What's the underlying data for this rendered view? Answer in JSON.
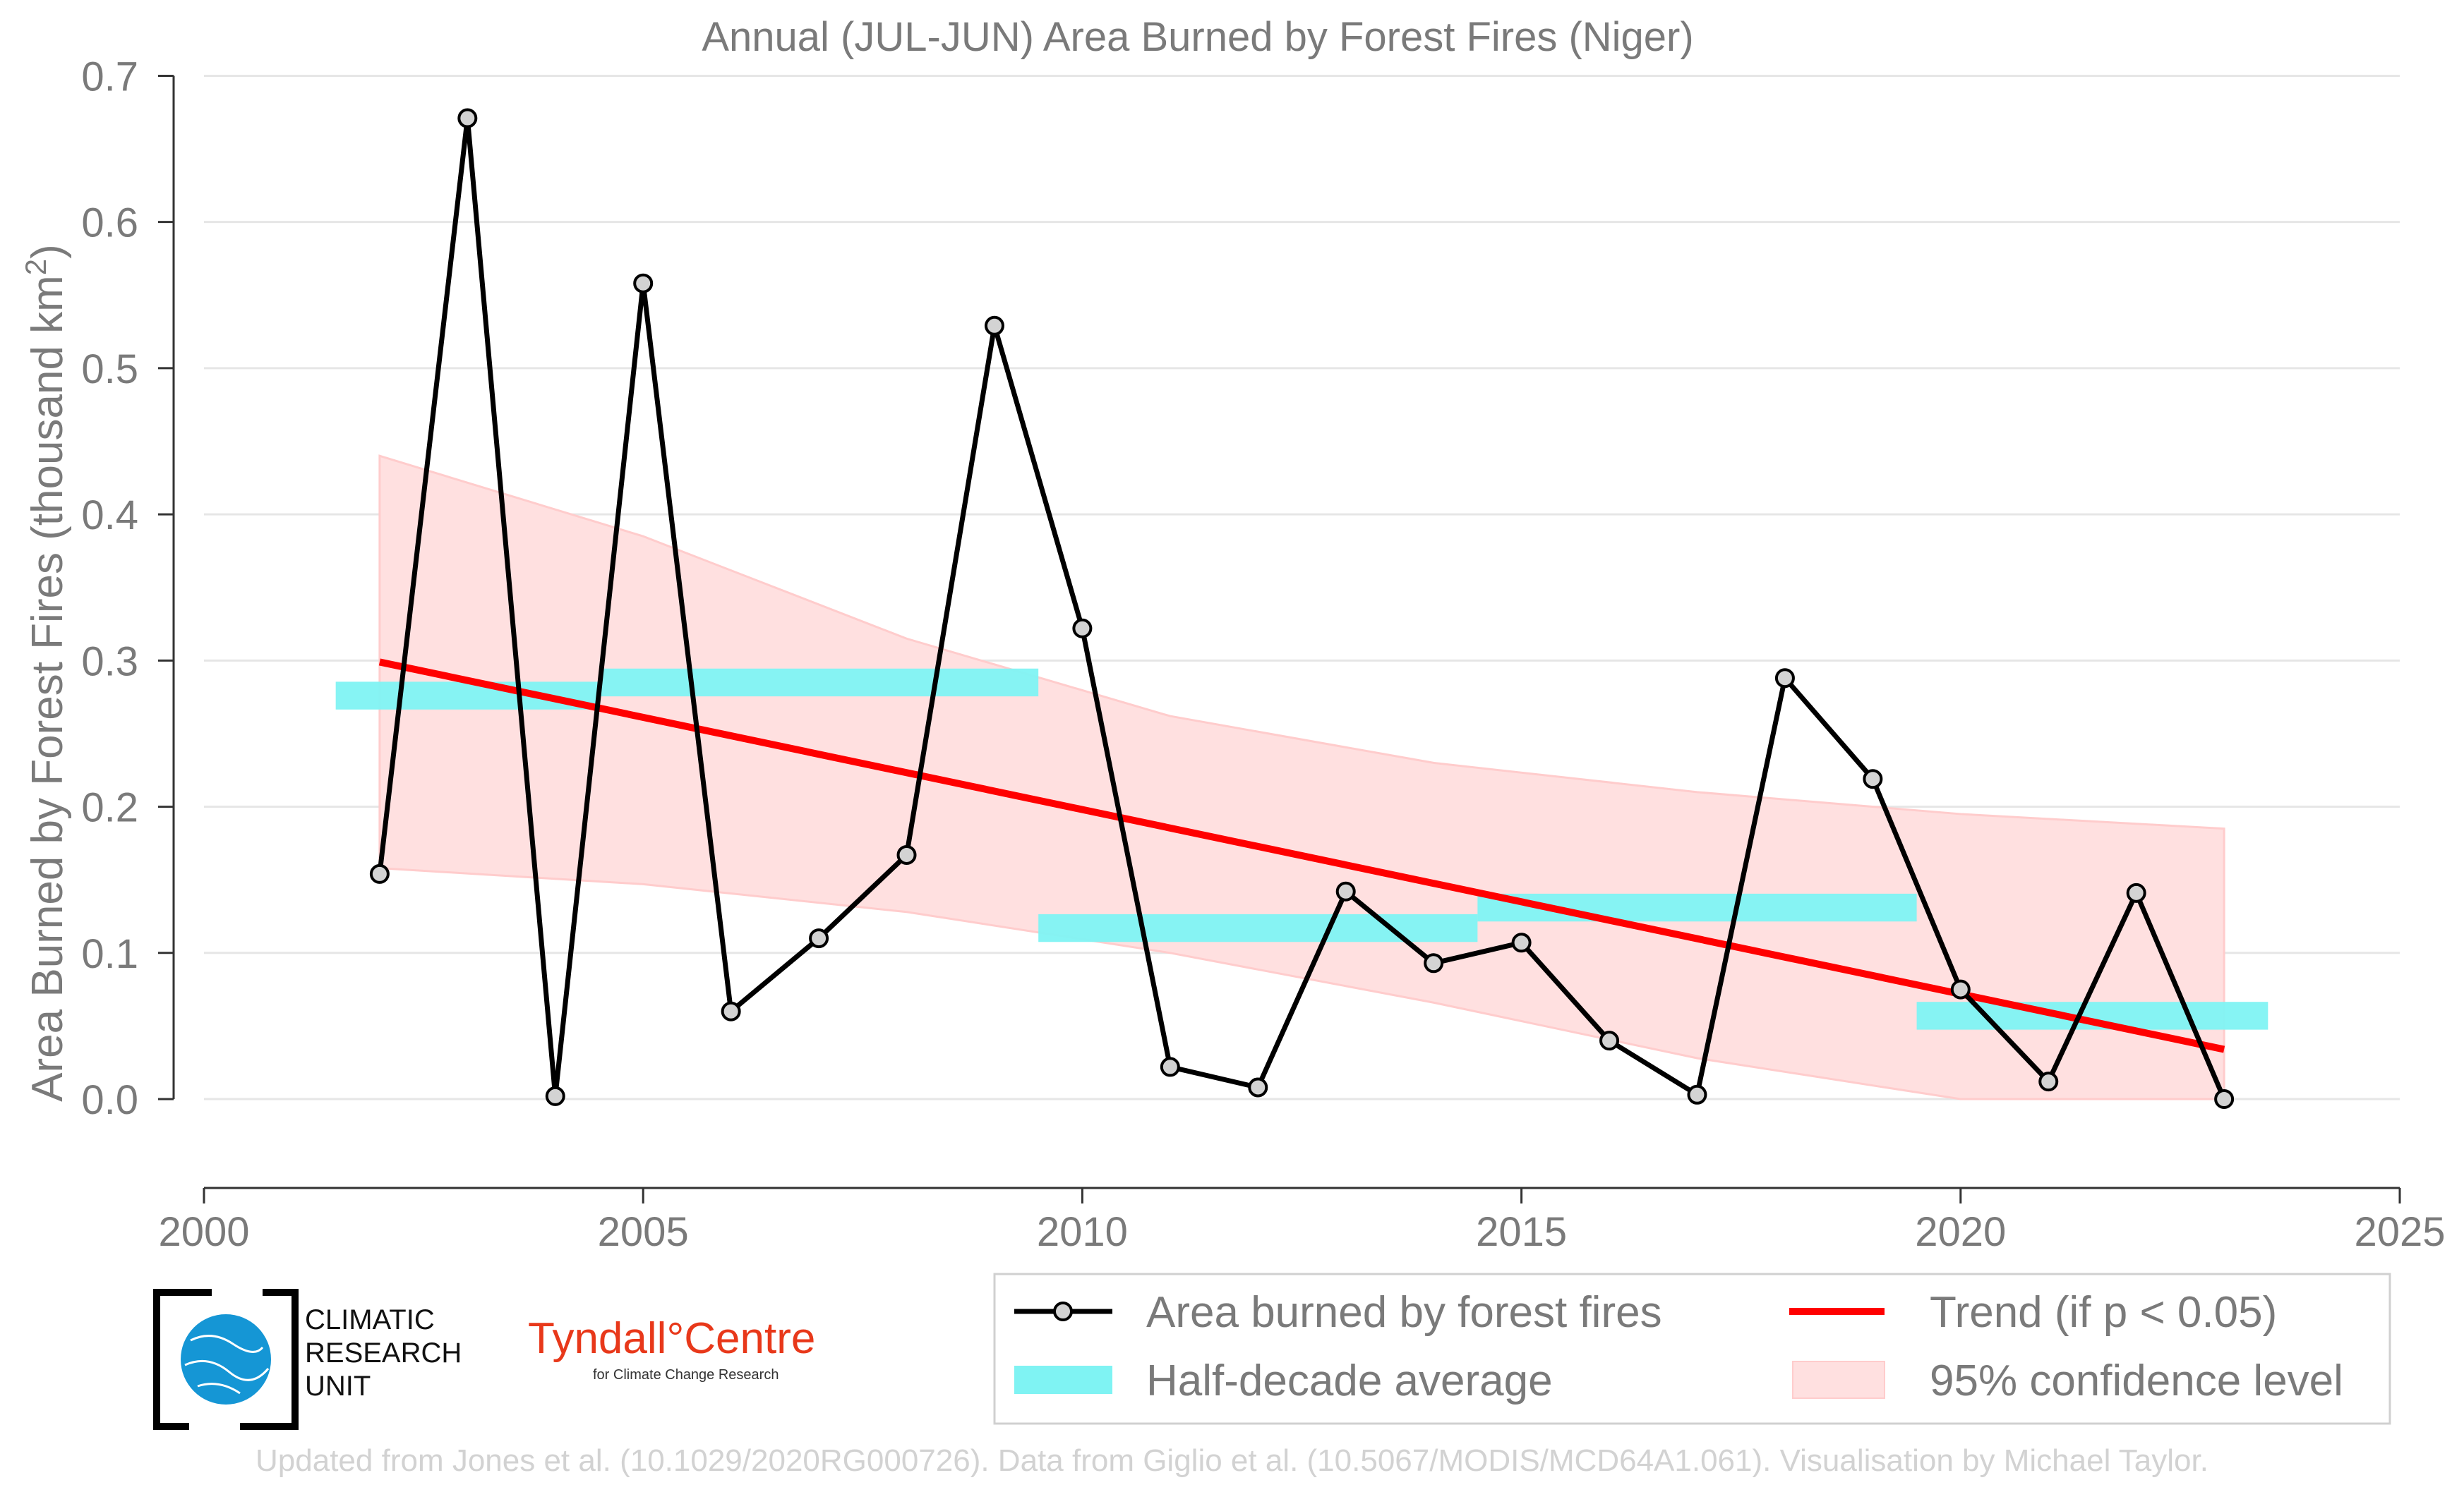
{
  "chart_data": {
    "type": "line",
    "title": "Annual (JUL-JUN) Area Burned by Forest Fires (Niger)",
    "ylabel": "Area Burned by Forest Fires (thousand km²)",
    "xlabel": "",
    "xlim": [
      2000,
      2025
    ],
    "ylim": [
      -0.055,
      0.72
    ],
    "x_ticks": [
      "2000",
      "2005",
      "2010",
      "2015",
      "2020",
      "2025"
    ],
    "y_ticks": [
      "0.0",
      "0.1",
      "0.2",
      "0.3",
      "0.4",
      "0.5",
      "0.6",
      "0.7"
    ],
    "series": [
      {
        "name": "Area burned by forest fires",
        "x": [
          2002,
          2003,
          2004,
          2005,
          2006,
          2007,
          2008,
          2009,
          2010,
          2011,
          2012,
          2013,
          2014,
          2015,
          2016,
          2017,
          2018,
          2019,
          2020,
          2021,
          2022,
          2023
        ],
        "values": [
          0.154,
          0.671,
          0.002,
          0.558,
          0.06,
          0.11,
          0.167,
          0.529,
          0.322,
          0.022,
          0.008,
          0.142,
          0.093,
          0.107,
          0.04,
          0.003,
          0.288,
          0.219,
          0.075,
          0.012,
          0.141,
          0.0
        ],
        "color": "#000000"
      }
    ],
    "half_decade_averages": [
      {
        "start": 2001.5,
        "end": 2004.5,
        "value": 0.276
      },
      {
        "start": 2004.5,
        "end": 2009.5,
        "value": 0.285
      },
      {
        "start": 2009.5,
        "end": 2014.5,
        "value": 0.117
      },
      {
        "start": 2014.5,
        "end": 2019.5,
        "value": 0.131
      },
      {
        "start": 2019.5,
        "end": 2023.5,
        "value": 0.057
      }
    ],
    "trend": {
      "x": [
        2002,
        2023
      ],
      "values": [
        0.299,
        0.034
      ],
      "color": "#ff0000"
    },
    "confidence_band": {
      "x": [
        2002,
        2005,
        2008,
        2011,
        2014,
        2017,
        2020,
        2023
      ],
      "upper": [
        0.44,
        0.385,
        0.315,
        0.262,
        0.23,
        0.21,
        0.195,
        0.185
      ],
      "lower": [
        0.158,
        0.147,
        0.128,
        0.1,
        0.066,
        0.028,
        0.0,
        0.0
      ]
    },
    "legend": {
      "position": "bottom-right",
      "items": [
        "Area burned by forest fires",
        "Trend (if p < 0.05)",
        "Half-decade average",
        "95% confidence level"
      ]
    }
  },
  "logos": {
    "cru_line1": "CLIMATIC",
    "cru_line2": "RESEARCH",
    "cru_line3": "UNIT",
    "tyndall_main": "Tyndall°Centre",
    "tyndall_sub": "for Climate Change Research"
  },
  "footer": "Updated from Jones et al. (10.1029/2020RG000726). Data from Giglio et al. (10.5067/MODIS/MCD64A1.061). Visualisation by Michael Taylor.",
  "colors": {
    "line": "#000000",
    "marker_fill": "#d3d3d3",
    "trend": "#ff0000",
    "half_decade": "#7ff3f3",
    "band_fill": "#ffe0e0",
    "band_edge": "#ffcccc",
    "grid": "#e6e6e6",
    "text": "#7a7a7a"
  }
}
